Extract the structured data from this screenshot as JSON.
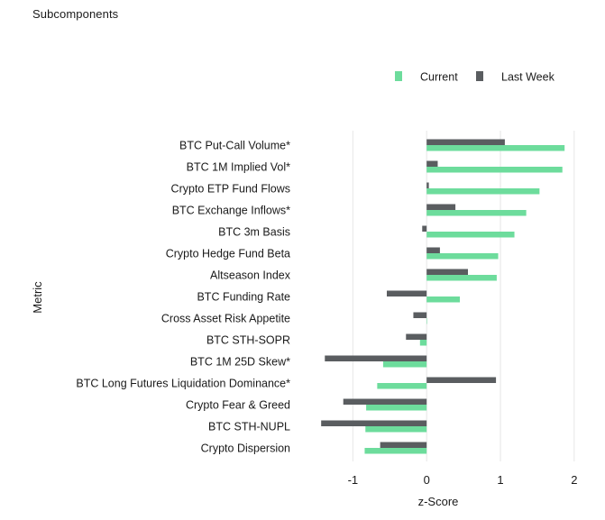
{
  "title": "Subcomponents",
  "colors": {
    "current": "#6ddc9c",
    "last_week": "#5a5d60",
    "grid": "#e6e6e6"
  },
  "legend": {
    "position": "top-right",
    "items": [
      {
        "label": "Current",
        "color": "#6ddc9c"
      },
      {
        "label": "Last Week",
        "color": "#5a5d60"
      }
    ]
  },
  "chart_data": {
    "type": "bar",
    "orientation": "horizontal",
    "title": "Subcomponents",
    "xlabel": "z-Score",
    "ylabel": "Metric",
    "xlim": [
      -1.75,
      2.1
    ],
    "xticks": [
      -1,
      0,
      1,
      2
    ],
    "grid": true,
    "categories": [
      "BTC Put-Call Volume*",
      "BTC 1M Implied Vol*",
      "Crypto ETP Fund Flows",
      "BTC Exchange Inflows*",
      "BTC 3m Basis",
      "Crypto Hedge Fund Beta",
      "Altseason Index",
      "BTC Funding Rate",
      "Cross Asset Risk Appetite",
      "BTC STH-SOPR",
      "BTC 1M 25D Skew*",
      "BTC Long Futures Liquidation Dominance*",
      "Crypto Fear & Greed",
      "BTC STH-NUPL",
      "Crypto Dispersion"
    ],
    "series": [
      {
        "name": "Current",
        "values": [
          1.87,
          1.84,
          1.53,
          1.35,
          1.19,
          0.97,
          0.95,
          0.45,
          0.0,
          -0.09,
          -0.59,
          -0.67,
          -0.82,
          -0.83,
          -0.84
        ]
      },
      {
        "name": "Last Week",
        "values": [
          1.06,
          0.15,
          0.03,
          0.39,
          -0.06,
          0.18,
          0.56,
          -0.54,
          -0.18,
          -0.28,
          -1.38,
          0.94,
          -1.13,
          -1.43,
          -0.63
        ]
      }
    ]
  }
}
